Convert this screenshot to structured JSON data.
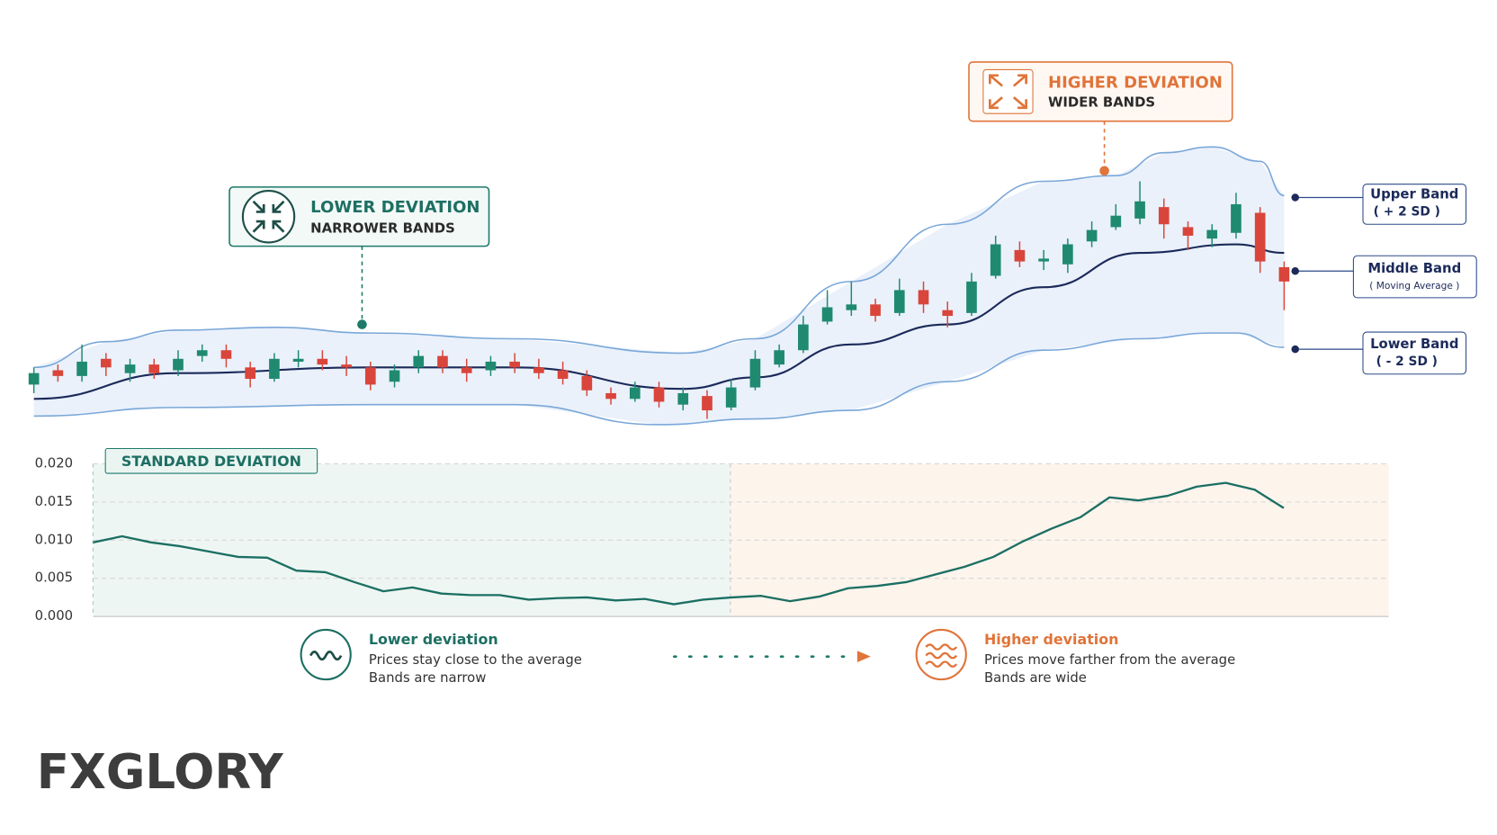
{
  "chart_data": [
    {
      "type": "candlestick",
      "ylim": [
        0,
        110
      ],
      "up_color": "#1f8a70",
      "down_color": "#d9453b",
      "open": [
        19,
        24,
        22,
        28,
        23,
        26,
        24,
        29,
        31,
        25,
        21,
        27,
        28,
        26,
        25,
        20,
        25,
        29,
        25,
        24,
        27,
        25,
        24,
        22,
        16,
        14,
        18,
        12,
        15,
        11,
        18,
        26,
        31,
        41,
        45,
        47,
        44,
        52,
        45,
        44,
        57,
        66,
        62,
        61,
        69,
        74,
        77,
        81,
        74,
        70,
        72,
        79,
        60
      ],
      "close": [
        23,
        22,
        27,
        25,
        26,
        23,
        28,
        31,
        28,
        21,
        28,
        28,
        26,
        25,
        19,
        24,
        29,
        25,
        23,
        27,
        25,
        23,
        21,
        17,
        14,
        18,
        13,
        16,
        10,
        18,
        28,
        31,
        40,
        46,
        47,
        43,
        52,
        47,
        43,
        55,
        68,
        62,
        63,
        68,
        73,
        78,
        83,
        75,
        71,
        73,
        82,
        62,
        55
      ],
      "high": [
        25,
        26,
        33,
        30,
        28,
        28,
        31,
        33,
        33,
        27,
        30,
        31,
        31,
        29,
        27,
        26,
        31,
        31,
        28,
        29,
        30,
        28,
        27,
        24,
        18,
        20,
        20,
        18,
        17,
        21,
        31,
        33,
        43,
        52,
        55,
        49,
        56,
        55,
        48,
        58,
        71,
        69,
        66,
        70,
        76,
        82,
        90,
        84,
        76,
        75,
        86,
        81,
        62
      ],
      "low": [
        16,
        20,
        20,
        22,
        20,
        21,
        22,
        27,
        25,
        18,
        20,
        25,
        24,
        22,
        17,
        18,
        23,
        23,
        20,
        22,
        23,
        21,
        19,
        15,
        12,
        13,
        11,
        10,
        7,
        10,
        17,
        25,
        30,
        40,
        43,
        41,
        43,
        44,
        39,
        43,
        56,
        60,
        59,
        58,
        67,
        73,
        75,
        70,
        66,
        67,
        70,
        58,
        45
      ],
      "bands": [
        {
          "name": "Upper Band",
          "note": "( + 2 SD )",
          "color": "#7aa7d8",
          "x": [
            0,
            3,
            6,
            10,
            14,
            20,
            27,
            30,
            34,
            38,
            42,
            45,
            47,
            49,
            51,
            52
          ],
          "values": [
            25,
            34,
            38,
            39,
            37,
            35,
            30,
            35,
            55,
            75,
            90,
            92,
            100,
            102,
            97,
            85
          ]
        },
        {
          "name": "Middle Band",
          "note": "( Moving Average )",
          "color": "#1c2a5a",
          "x": [
            0,
            6,
            14,
            20,
            27,
            30,
            34,
            38,
            42,
            46,
            50,
            52
          ],
          "values": [
            14,
            23,
            25,
            25,
            17.5,
            21.5,
            33,
            40,
            53,
            65,
            68,
            65
          ]
        },
        {
          "name": "Lower Band",
          "note": "( - 2 SD )",
          "color": "#7aa7d8",
          "x": [
            0,
            6,
            14,
            20,
            26,
            30,
            34,
            38,
            42,
            46,
            49,
            50,
            52
          ],
          "values": [
            8,
            11,
            12,
            12,
            5,
            7,
            10,
            20,
            31,
            35,
            37,
            37,
            32
          ]
        }
      ],
      "annotations": [
        {
          "title": "LOWER DEVIATION",
          "text": "NARROWER BANDS"
        },
        {
          "title": "HIGHER DEVIATION",
          "text": "WIDER BANDS"
        }
      ]
    },
    {
      "type": "line",
      "title": "STANDARD DEVIATION",
      "color": "#1b6f63",
      "ylim": [
        0,
        0.02
      ],
      "yticks": [
        {
          "value": 0,
          "label": "0.000"
        },
        {
          "value": 0.005,
          "label": "0.005"
        },
        {
          "value": 0.01,
          "label": "0.010"
        },
        {
          "value": 0.015,
          "label": "0.015"
        },
        {
          "value": 0.02,
          "label": "0.020"
        }
      ],
      "grid": true,
      "values": [
        0.0097,
        0.0105,
        0.0097,
        0.0092,
        0.0085,
        0.0078,
        0.0077,
        0.006,
        0.0058,
        0.0045,
        0.0033,
        0.0038,
        0.003,
        0.0028,
        0.0028,
        0.0022,
        0.0024,
        0.0025,
        0.0021,
        0.0023,
        0.0016,
        0.0022,
        0.0025,
        0.0027,
        0.002,
        0.0026,
        0.0037,
        0.004,
        0.0045,
        0.0055,
        0.0065,
        0.0078,
        0.0098,
        0.0115,
        0.013,
        0.0156,
        0.0152,
        0.0158,
        0.017,
        0.0175,
        0.0166,
        0.0142
      ],
      "legend": [
        {
          "title": "Lower deviation",
          "lines": [
            "Prices stay close to the average",
            "Bands are narrow"
          ]
        },
        {
          "title": "Higher deviation",
          "lines": [
            "Prices move farther from the average",
            "Bands are wide"
          ]
        }
      ]
    }
  ],
  "logo": "FXGLORY"
}
